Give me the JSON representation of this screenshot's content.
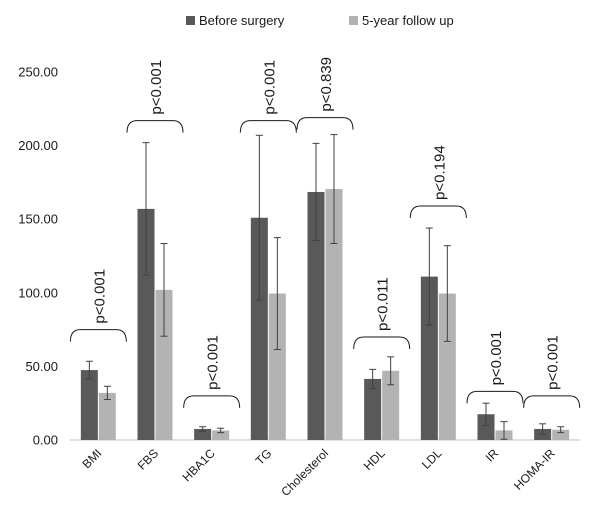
{
  "chart_data": {
    "type": "bar",
    "title": "",
    "xlabel": "",
    "ylabel": "",
    "ylim": [
      0,
      250
    ],
    "yticks": [
      "0.00",
      "50.00",
      "100.00",
      "150.00",
      "200.00",
      "250.00"
    ],
    "grid": false,
    "legend_position": "top-center",
    "categories": [
      "BMI",
      "FBS",
      "HBA1C",
      "TG",
      "Cholesterol",
      "HDL",
      "LDL",
      "IR",
      "HOMA-IR"
    ],
    "series": [
      {
        "name": "Before surgery",
        "color": "#595959",
        "values": [
          47.5,
          157,
          7.5,
          151,
          168.5,
          41.5,
          111,
          17.5,
          7.5
        ],
        "error": [
          6,
          45,
          1.5,
          56,
          33,
          6.5,
          33,
          7.5,
          3.5
        ]
      },
      {
        "name": "5-year follow up",
        "color": "#b3b3b3",
        "values": [
          32,
          102,
          6.5,
          99.5,
          170.5,
          47,
          99.5,
          6.5,
          7
        ],
        "error": [
          4.5,
          31.5,
          1.5,
          38,
          37,
          9.5,
          32.5,
          6,
          2
        ]
      }
    ],
    "annotations": [
      {
        "category": "BMI",
        "label": "p<0.001",
        "bracket_value": 75
      },
      {
        "category": "FBS",
        "label": "p<0.001",
        "bracket_value": 217
      },
      {
        "category": "HBA1C",
        "label": "p<0.001",
        "bracket_value": 30
      },
      {
        "category": "TG",
        "label": "p<0.001",
        "bracket_value": 217
      },
      {
        "category": "Cholesterol",
        "label": "p<0.839",
        "bracket_value": 219
      },
      {
        "category": "HDL",
        "label": "p<0.011",
        "bracket_value": 70
      },
      {
        "category": "LDL",
        "label": "p<0.194",
        "bracket_value": 159
      },
      {
        "category": "IR",
        "label": "p<0.001",
        "bracket_value": 33
      },
      {
        "category": "HOMA-IR",
        "label": "p<0.001",
        "bracket_value": 30
      }
    ]
  }
}
